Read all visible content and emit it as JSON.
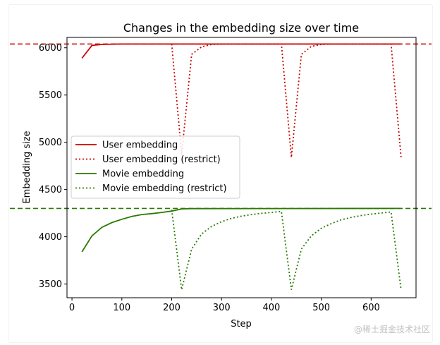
{
  "chart_data": {
    "type": "line",
    "title": "Changes in the embedding size over time",
    "xlabel": "Step",
    "ylabel": "Embedding size",
    "xlim": [
      -10,
      690
    ],
    "ylim": [
      3355,
      6110
    ],
    "xticks": [
      0,
      100,
      200,
      300,
      400,
      500,
      600
    ],
    "yticks": [
      3500,
      4000,
      4500,
      5000,
      5500,
      6000
    ],
    "grid": false,
    "legend_position": "center-left",
    "reference_lines": [
      {
        "y": 6040,
        "color": "#cc0000",
        "style": "dashed"
      },
      {
        "y": 4300,
        "color": "#2a7a00",
        "style": "dashed"
      }
    ],
    "series": [
      {
        "name": "User embedding",
        "color": "#cc0000",
        "style": "solid",
        "x": [
          20,
          40,
          60,
          80,
          100,
          660
        ],
        "y": [
          5890,
          6025,
          6035,
          6038,
          6040,
          6040
        ]
      },
      {
        "name": "User embedding (restrict)",
        "color": "#cc0000",
        "style": "dotted",
        "x": [
          200,
          220,
          240,
          260,
          280,
          300,
          420,
          440,
          460,
          480,
          500,
          520,
          640,
          660
        ],
        "y": [
          6040,
          4870,
          5930,
          6010,
          6035,
          6040,
          6040,
          4840,
          5930,
          6015,
          6035,
          6040,
          6040,
          4840
        ]
      },
      {
        "name": "Movie embedding",
        "color": "#2a7a00",
        "style": "solid",
        "x": [
          20,
          40,
          60,
          80,
          100,
          120,
          140,
          160,
          180,
          200,
          220,
          240,
          660
        ],
        "y": [
          3840,
          4010,
          4100,
          4150,
          4185,
          4215,
          4235,
          4245,
          4258,
          4272,
          4295,
          4298,
          4300
        ]
      },
      {
        "name": "Movie embedding (restrict)",
        "color": "#2a7a00",
        "style": "dotted",
        "x": [
          200,
          220,
          240,
          260,
          280,
          300,
          320,
          340,
          360,
          380,
          400,
          420,
          440,
          460,
          480,
          500,
          520,
          540,
          560,
          580,
          600,
          620,
          640,
          660
        ],
        "y": [
          4285,
          3440,
          3870,
          4030,
          4110,
          4160,
          4195,
          4218,
          4235,
          4248,
          4258,
          4268,
          3440,
          3870,
          4010,
          4090,
          4140,
          4180,
          4205,
          4225,
          4240,
          4252,
          4262,
          3440
        ]
      }
    ]
  },
  "watermark": "@稀土掘金技术社区"
}
